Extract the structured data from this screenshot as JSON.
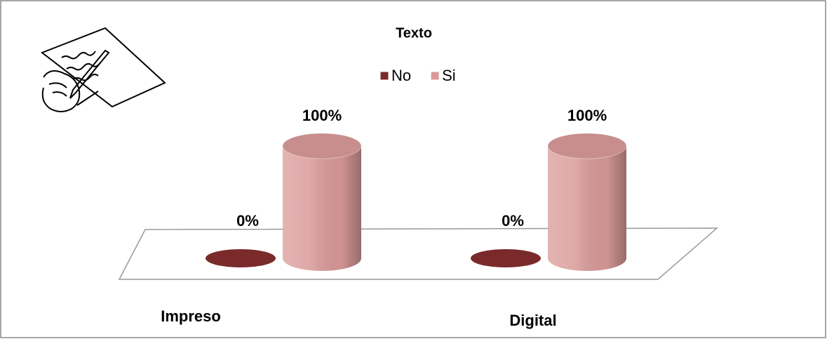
{
  "chart_data": {
    "type": "bar3d",
    "title": "Texto",
    "categories": [
      "Impreso",
      "Digital"
    ],
    "series": [
      {
        "name": "No",
        "color": "#7a2a2a",
        "values": [
          0,
          0
        ],
        "value_labels": [
          "0%",
          "0%"
        ]
      },
      {
        "name": "Si",
        "color": "#d99a99",
        "values": [
          100,
          100
        ],
        "value_labels": [
          "100%",
          "100%"
        ]
      }
    ],
    "ylim": [
      0,
      100
    ],
    "legend": "top"
  }
}
